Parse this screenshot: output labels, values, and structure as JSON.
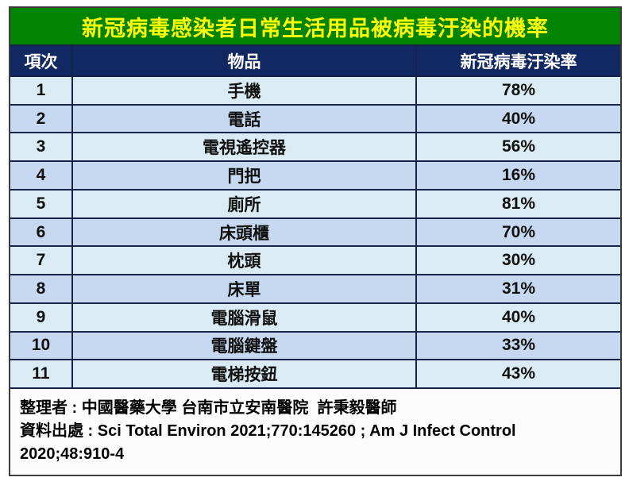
{
  "title": "新冠病毒感染者日常生活用品被病毒汙染的機率",
  "table": {
    "headers": {
      "no": "項次",
      "item": "物品",
      "rate": "新冠病毒汙染率"
    },
    "rows": [
      {
        "no": "1",
        "item": "手機",
        "rate": "78%"
      },
      {
        "no": "2",
        "item": "電話",
        "rate": "40%"
      },
      {
        "no": "3",
        "item": "電視遙控器",
        "rate": "56%"
      },
      {
        "no": "4",
        "item": "門把",
        "rate": "16%"
      },
      {
        "no": "5",
        "item": "廁所",
        "rate": "81%"
      },
      {
        "no": "6",
        "item": "床頭櫃",
        "rate": "70%"
      },
      {
        "no": "7",
        "item": "枕頭",
        "rate": "30%"
      },
      {
        "no": "8",
        "item": "床單",
        "rate": "31%"
      },
      {
        "no": "9",
        "item": "電腦滑鼠",
        "rate": "40%"
      },
      {
        "no": "10",
        "item": "電腦鍵盤",
        "rate": "33%"
      },
      {
        "no": "11",
        "item": "電梯按鈕",
        "rate": "43%"
      }
    ]
  },
  "footer": {
    "line1": "整理者 : 中國醫藥大學 台南市立安南醫院  許秉毅醫師",
    "line2": "資料出處 : Sci Total Environ 2021;770:145260 ; Am J Infect Control",
    "line3": "2020;48:910-4"
  },
  "colors": {
    "title_bg": "#028302",
    "title_text": "#ffff00",
    "header_bg": "#112863",
    "header_text": "#ffffff",
    "row_light": "#daebf3",
    "row_dark": "#c6d9f0",
    "grid_line": "#17244a",
    "footer_bg": "#fcfcfc",
    "body_text": "#101010"
  },
  "chart_data": {
    "type": "table",
    "title": "新冠病毒感染者日常生活用品被病毒汙染的機率",
    "columns": [
      "項次",
      "物品",
      "新冠病毒汙染率"
    ],
    "categories": [
      "手機",
      "電話",
      "電視遙控器",
      "門把",
      "廁所",
      "床頭櫃",
      "枕頭",
      "床單",
      "電腦滑鼠",
      "電腦鍵盤",
      "電梯按鈕"
    ],
    "values": [
      78,
      40,
      56,
      16,
      81,
      70,
      30,
      31,
      40,
      33,
      43
    ],
    "unit": "%",
    "source": "Sci Total Environ 2021;770:145260 ; Am J Infect Control 2020;48:910-4",
    "compiled_by": "中國醫藥大學 台南市立安南醫院 許秉毅醫師"
  }
}
